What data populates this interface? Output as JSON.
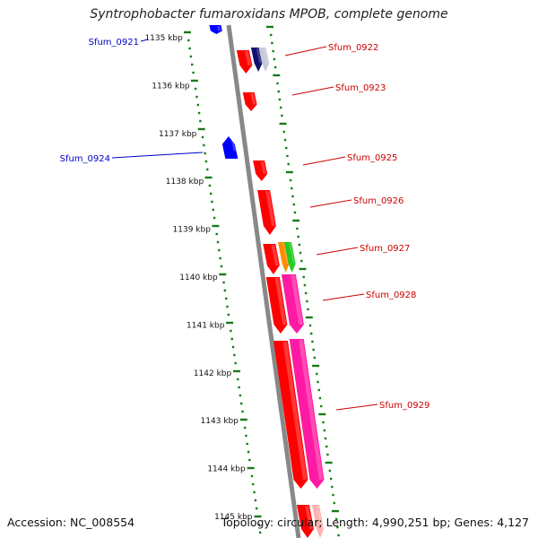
{
  "title": "Syntrophobacter fumaroxidans MPOB, complete genome",
  "footer": {
    "accession": "Accession: NC_008554",
    "topology": "Topology: circular; Length: 4,990,251 bp; Genes: 4,127"
  },
  "colors": {
    "backbone": "#888888",
    "tick": "#1a7a1a",
    "forward_label": "#cc0000",
    "reverse_label": "#0000cc",
    "gene_red": "#ff0000",
    "gene_blue": "#0000ff",
    "gene_magenta": "#ff1aa3",
    "gene_orange": "#ff8c00",
    "gene_green": "#22cc22",
    "gene_navy": "#101070",
    "gene_gray": "#c8c8d8"
  },
  "kbp_labels": [
    "1135 kbp",
    "1136 kbp",
    "1137 kbp",
    "1138 kbp",
    "1139 kbp",
    "1140 kbp",
    "1141 kbp",
    "1142 kbp",
    "1143 kbp",
    "1144 kbp",
    "1145 kbp"
  ],
  "gene_labels": [
    {
      "text": "Sfum_0921",
      "strand": "reverse"
    },
    {
      "text": "Sfum_0922",
      "strand": "forward"
    },
    {
      "text": "Sfum_0923",
      "strand": "forward"
    },
    {
      "text": "Sfum_0924",
      "strand": "reverse"
    },
    {
      "text": "Sfum_0925",
      "strand": "forward"
    },
    {
      "text": "Sfum_0926",
      "strand": "forward"
    },
    {
      "text": "Sfum_0927",
      "strand": "forward"
    },
    {
      "text": "Sfum_0928",
      "strand": "forward"
    },
    {
      "text": "Sfum_0929",
      "strand": "forward"
    }
  ]
}
